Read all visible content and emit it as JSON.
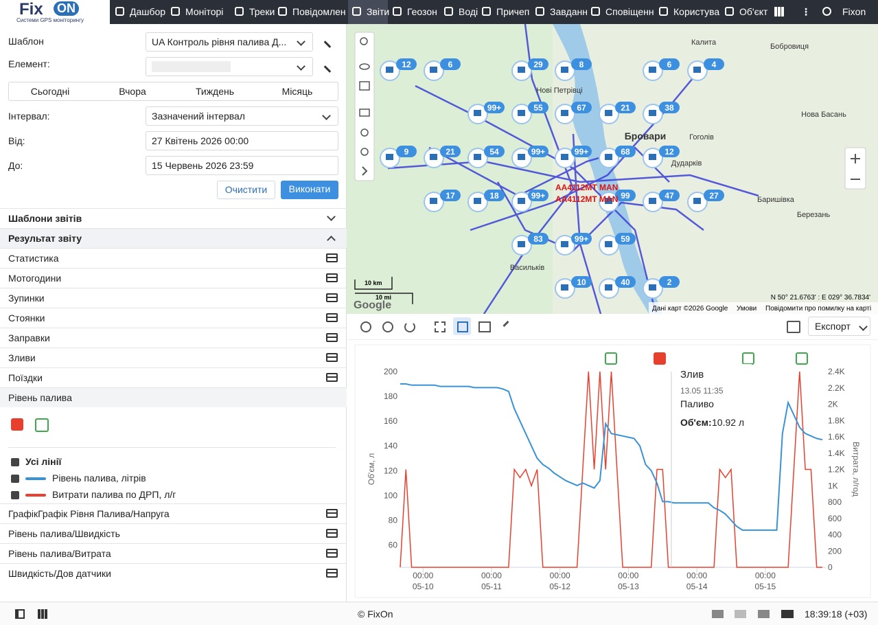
{
  "header": {
    "logo_a": "Fix",
    "logo_b": "ON",
    "tagline": "Системи GPS моніторингу",
    "nav": [
      "Дашбор",
      "Моніторі",
      "Треки",
      "Повідомлен",
      "Звіти",
      "Геозон",
      "Воді",
      "Причеп",
      "Завданн",
      "Сповіщенн",
      "Користува",
      "Об'єкт"
    ],
    "user": "Fixon"
  },
  "form": {
    "template_label": "Шаблон",
    "template_value": "UA Контроль рівня палива Д...",
    "element_label": "Елемент:",
    "periods": [
      "Сьогодні",
      "Вчора",
      "Тиждень",
      "Місяць"
    ],
    "interval_label": "Інтервал:",
    "interval_value": "Зазначений інтервал",
    "from_label": "Від:",
    "from_value": "27 Квітень 2026 00:00",
    "to_label": "До:",
    "to_value": "15 Червень 2026 23:59",
    "clear": "Очистити",
    "run": "Виконати"
  },
  "sections": [
    "Шаблони звітів",
    "Результат звіту"
  ],
  "report_items": [
    "Статистика",
    "Мотогодини",
    "Зупинки",
    "Стоянки",
    "Заправки",
    "Зливи",
    "Поїздки",
    "Рівень палива"
  ],
  "legend_all": "Усі лінії",
  "report_items2": [
    "ГрафікГрафік Рівня Палива/Напруга",
    "Рівень палива/Швидкість",
    "Рівень палива/Витрата",
    "Швидкість/Дов датчики"
  ],
  "map": {
    "markers": [
      "12",
      "6",
      "29",
      "8",
      "6",
      "4",
      "99+",
      "55",
      "67",
      "21",
      "38",
      "9",
      "21",
      "54",
      "99+",
      "99+",
      "68",
      "12",
      "17",
      "18",
      "99+",
      "99",
      "47",
      "27",
      "83",
      "99+",
      "59",
      "10",
      "40",
      "2"
    ],
    "places": [
      "Нові Петрівці",
      "Бровари",
      "Калита",
      "Бобровиця",
      "Гоголів",
      "Нова Басань",
      "Дударків",
      "Баришівка",
      "Березань",
      "Васильків"
    ],
    "vehicle": "AA4112MT MAN",
    "scale_km": "10 km",
    "scale_mi": "10 mi",
    "google": "Google",
    "attribution": "Дані карт ©2026 Google",
    "terms": "Умови",
    "report": "Повідомити про помилку на карті",
    "coords": "N 50° 21.6763' : E 029° 36.7834'"
  },
  "toolbar": {
    "export": "Експорт"
  },
  "chart_data": {
    "type": "line",
    "ylabel": "Об'єм, л",
    "y2label": "Витрата, л/год",
    "x": [
      "05-09 16:00",
      "05-09 18:00",
      "05-09 20:00",
      "05-09 22:00",
      "05-10 00:00",
      "05-10 02:00",
      "05-10 04:00",
      "05-10 06:00",
      "05-10 08:00",
      "05-10 10:00",
      "05-10 12:00",
      "05-10 14:00",
      "05-10 16:00",
      "05-10 18:00",
      "05-10 20:00",
      "05-10 22:00",
      "05-11 00:00",
      "05-11 02:00",
      "05-11 04:00",
      "05-11 06:00",
      "05-11 08:00",
      "05-11 10:00",
      "05-11 12:00",
      "05-11 14:00",
      "05-11 16:00",
      "05-11 18:00",
      "05-11 20:00",
      "05-11 22:00",
      "05-12 00:00",
      "05-12 02:00",
      "05-12 04:00",
      "05-12 06:00",
      "05-12 08:00",
      "05-12 10:00",
      "05-12 12:00",
      "05-12 14:00",
      "05-12 16:00",
      "05-12 18:00",
      "05-12 20:00",
      "05-12 22:00",
      "05-13 00:00",
      "05-13 02:00",
      "05-13 04:00",
      "05-13 06:00",
      "05-13 08:00",
      "05-13 10:00",
      "05-13 12:00",
      "05-13 14:00",
      "05-13 16:00",
      "05-13 18:00",
      "05-13 20:00",
      "05-13 22:00",
      "05-14 00:00",
      "05-14 02:00",
      "05-14 04:00",
      "05-14 06:00",
      "05-14 08:00",
      "05-14 10:00",
      "05-14 12:00",
      "05-14 14:00",
      "05-14 16:00",
      "05-14 18:00",
      "05-14 20:00",
      "05-14 22:00",
      "05-15 00:00",
      "05-15 02:00",
      "05-15 04:00",
      "05-15 06:00",
      "05-15 08:00",
      "05-15 10:00",
      "05-15 12:00",
      "05-15 14:00",
      "05-15 16:00",
      "05-15 18:00",
      "05-15 20:00"
    ],
    "series": [
      {
        "name": "Рівень палива, літрів",
        "color": "#3a92d6",
        "values": [
          190,
          190,
          189,
          189,
          189,
          189,
          189,
          188,
          188,
          188,
          188,
          188,
          188,
          187,
          187,
          187,
          187,
          187,
          186,
          184,
          170,
          160,
          150,
          140,
          130,
          125,
          122,
          118,
          115,
          112,
          110,
          108,
          110,
          108,
          106,
          112,
          158,
          150,
          149,
          148,
          147,
          146,
          140,
          125,
          120,
          110,
          95,
          95,
          94,
          94,
          94,
          94,
          94,
          94,
          94,
          90,
          88,
          85,
          80,
          75,
          72,
          72,
          72,
          72,
          72,
          72,
          72,
          150,
          175,
          165,
          155,
          150,
          148,
          146,
          145
        ]
      },
      {
        "name": "Витрати палива по ДРП, л/г",
        "color": "#e8402f",
        "axis": "y2",
        "values": [
          0,
          1200,
          0,
          0,
          0,
          0,
          0,
          0,
          0,
          0,
          0,
          0,
          0,
          0,
          0,
          0,
          0,
          0,
          0,
          0,
          1200,
          1100,
          1200,
          1000,
          1200,
          0,
          0,
          0,
          0,
          0,
          0,
          0,
          1200,
          2400,
          1200,
          2400,
          1200,
          2400,
          1200,
          0,
          0,
          0,
          0,
          0,
          0,
          1200,
          1200,
          0,
          0,
          0,
          0,
          0,
          0,
          0,
          0,
          0,
          1200,
          1100,
          1200,
          0,
          0,
          0,
          0,
          0,
          0,
          0,
          0,
          0,
          0,
          1200,
          2400,
          1200,
          1200,
          0,
          0
        ]
      }
    ],
    "xlim": [
      "05-09 16:00",
      "05-15 20:00"
    ],
    "xticks": [
      {
        "value": "05-10 00:00",
        "label": [
          "00:00",
          "05-10"
        ]
      },
      {
        "value": "05-11 00:00",
        "label": [
          "00:00",
          "05-11"
        ]
      },
      {
        "value": "05-12 00:00",
        "label": [
          "00:00",
          "05-12"
        ]
      },
      {
        "value": "05-13 00:00",
        "label": [
          "00:00",
          "05-13"
        ]
      },
      {
        "value": "05-14 00:00",
        "label": [
          "00:00",
          "05-14"
        ]
      },
      {
        "value": "05-15 00:00",
        "label": [
          "00:00",
          "05-15"
        ]
      }
    ],
    "ylim": [
      42,
      200
    ],
    "yticks": [
      60,
      80,
      100,
      120,
      140,
      160,
      180,
      200
    ],
    "y2lim": [
      0,
      2400
    ],
    "y2ticks": [
      0,
      200,
      400,
      600,
      800,
      {
        "value": 1000,
        "label": "1K"
      },
      {
        "value": 1200,
        "label": "1.2K"
      },
      {
        "value": 1400,
        "label": "1.4K"
      },
      {
        "value": 1600,
        "label": "1.6K"
      },
      {
        "value": 1800,
        "label": "1.8K"
      },
      {
        "value": 2000,
        "label": "2K"
      },
      {
        "value": 2200,
        "label": "2.2K"
      },
      {
        "value": 2400,
        "label": "2.4K"
      }
    ],
    "grid": false,
    "tooltip": {
      "title": "Злив",
      "time": "13.05 11:35",
      "label": "Паливо",
      "key": "Об'єм:",
      "value": "10.92 л"
    }
  },
  "footer": {
    "copyright": "© FixOn",
    "clock": "18:39:18 (+03)"
  }
}
